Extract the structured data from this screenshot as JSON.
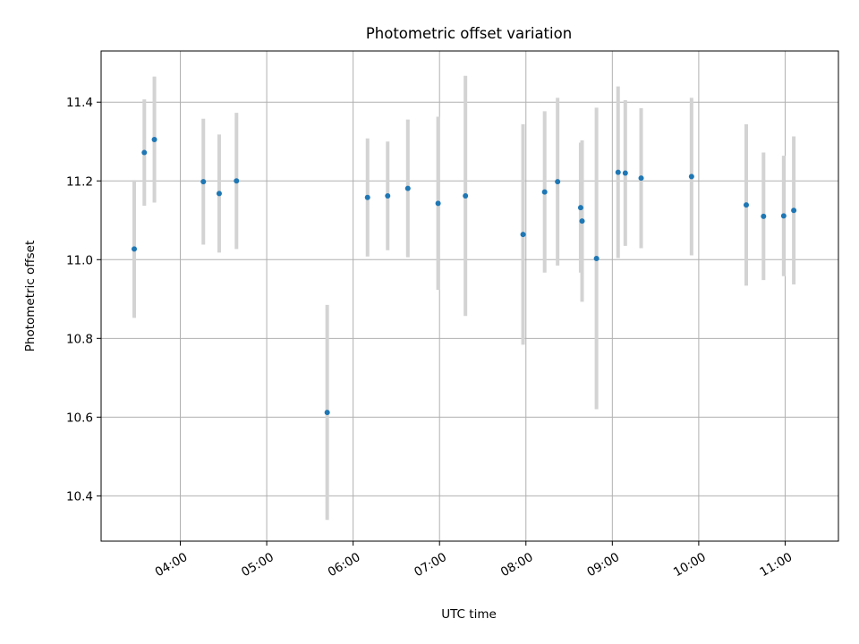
{
  "chart_data": {
    "type": "scatter",
    "title": "Photometric offset variation",
    "xlabel": "UTC time",
    "ylabel": "Photometric offset",
    "xlim": [
      "03:05",
      "11:37"
    ],
    "ylim": [
      10.285,
      11.53
    ],
    "grid": true,
    "x_ticks": [
      "04:00",
      "05:00",
      "06:00",
      "07:00",
      "08:00",
      "09:00",
      "10:00",
      "11:00"
    ],
    "y_ticks": [
      10.4,
      10.6,
      10.8,
      11.0,
      11.2,
      11.4
    ],
    "y_tick_labels": [
      "10.4",
      "10.6",
      "10.8",
      "11.0",
      "11.2",
      "11.4"
    ],
    "point_color": "#1f77b4",
    "errorbar_color": "#d3d3d3",
    "points": [
      {
        "x": "03:28",
        "y": 11.027,
        "err": 0.175
      },
      {
        "x": "03:35",
        "y": 11.272,
        "err": 0.135
      },
      {
        "x": "03:42",
        "y": 11.305,
        "err": 0.16
      },
      {
        "x": "04:16",
        "y": 11.198,
        "err": 0.16
      },
      {
        "x": "04:27",
        "y": 11.168,
        "err": 0.15
      },
      {
        "x": "04:39",
        "y": 11.2,
        "err": 0.173
      },
      {
        "x": "05:42",
        "y": 10.612,
        "err": 0.273
      },
      {
        "x": "06:10",
        "y": 11.158,
        "err": 0.15
      },
      {
        "x": "06:24",
        "y": 11.162,
        "err": 0.138
      },
      {
        "x": "06:38",
        "y": 11.181,
        "err": 0.175
      },
      {
        "x": "06:59",
        "y": 11.143,
        "err": 0.22
      },
      {
        "x": "07:18",
        "y": 11.162,
        "err": 0.305
      },
      {
        "x": "07:58",
        "y": 11.064,
        "err": 0.28
      },
      {
        "x": "08:13",
        "y": 11.172,
        "err": 0.205
      },
      {
        "x": "08:22",
        "y": 11.198,
        "err": 0.213
      },
      {
        "x": "08:38",
        "y": 11.132,
        "err": 0.165
      },
      {
        "x": "08:39",
        "y": 11.098,
        "err": 0.205
      },
      {
        "x": "08:49",
        "y": 11.003,
        "err": 0.383
      },
      {
        "x": "09:04",
        "y": 11.222,
        "err": 0.218
      },
      {
        "x": "09:09",
        "y": 11.22,
        "err": 0.185
      },
      {
        "x": "09:20",
        "y": 11.207,
        "err": 0.178
      },
      {
        "x": "09:55",
        "y": 11.211,
        "err": 0.2
      },
      {
        "x": "10:33",
        "y": 11.139,
        "err": 0.205
      },
      {
        "x": "10:45",
        "y": 11.11,
        "err": 0.162
      },
      {
        "x": "10:59",
        "y": 11.111,
        "err": 0.153
      },
      {
        "x": "11:06",
        "y": 11.125,
        "err": 0.188
      }
    ]
  }
}
